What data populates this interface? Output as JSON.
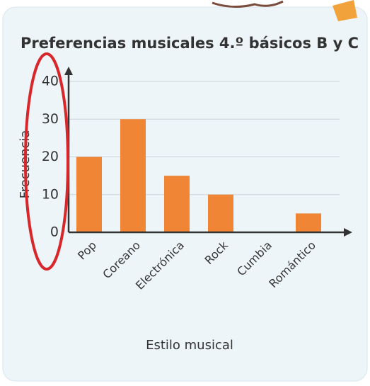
{
  "chart_data": {
    "type": "bar",
    "title": "Preferencias musicales 4.º básicos B y C",
    "xlabel": "Estilo musical",
    "ylabel": "Frecuencia",
    "categories": [
      "Pop",
      "Coreano",
      "Electrónica",
      "Rock",
      "Cumbia",
      "Romántico"
    ],
    "values": [
      20,
      30,
      15,
      10,
      0,
      5
    ],
    "color": "#ef8535",
    "ylim": [
      0,
      40
    ],
    "yticks": [
      0,
      10,
      20,
      30,
      40
    ],
    "grid": true
  }
}
